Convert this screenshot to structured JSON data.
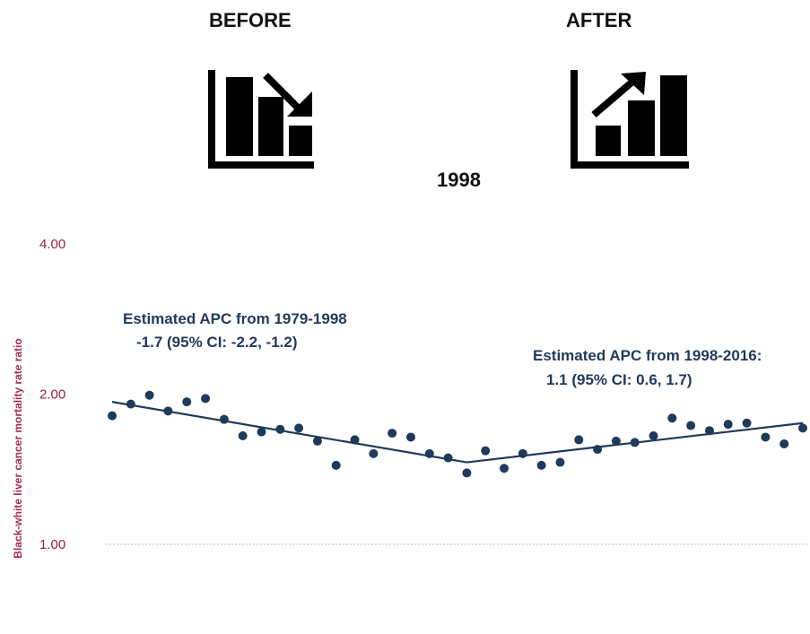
{
  "header": {
    "before_label": "BEFORE",
    "after_label": "AFTER",
    "joinpoint_label": "1998",
    "before_icon": "bar-chart-decreasing-icon",
    "after_icon": "bar-chart-increasing-icon"
  },
  "colors": {
    "points": "#1f3a5a",
    "trend_line": "#1f3a5a",
    "axis_text": "#9b1b4c",
    "reference_line": "#bbbbbb"
  },
  "chart_data": {
    "type": "scatter",
    "ylabel": "Black-white liver cancer mortality rate ratio",
    "xlabel": "",
    "y_scale": "log",
    "ylim": [
      0.8,
      4.0
    ],
    "y_ticks": [
      {
        "value": 4.0,
        "label": "4.00"
      },
      {
        "value": 2.0,
        "label": "2.00"
      },
      {
        "value": 1.0,
        "label": "1.00"
      }
    ],
    "reference_line": 1.0,
    "xlim": [
      1979,
      2016
    ],
    "x": [
      1979,
      1980,
      1981,
      1982,
      1983,
      1984,
      1985,
      1986,
      1987,
      1988,
      1989,
      1990,
      1991,
      1992,
      1993,
      1994,
      1995,
      1996,
      1997,
      1998,
      1999,
      2000,
      2001,
      2002,
      2003,
      2004,
      2005,
      2006,
      2007,
      2008,
      2009,
      2010,
      2011,
      2012,
      2013,
      2014,
      2015,
      2016
    ],
    "values": [
      1.81,
      1.91,
      1.99,
      1.85,
      1.93,
      1.96,
      1.78,
      1.65,
      1.68,
      1.7,
      1.71,
      1.61,
      1.44,
      1.62,
      1.52,
      1.67,
      1.64,
      1.52,
      1.49,
      1.39,
      1.54,
      1.42,
      1.52,
      1.44,
      1.46,
      1.62,
      1.55,
      1.61,
      1.6,
      1.65,
      1.79,
      1.73,
      1.69,
      1.74,
      1.75,
      1.64,
      1.59,
      1.71
    ],
    "segments": [
      {
        "from": [
          1979,
          1.93
        ],
        "to": [
          1998,
          1.46
        ]
      },
      {
        "from": [
          1998,
          1.46
        ],
        "to": [
          2016,
          1.75
        ]
      }
    ],
    "annotations": [
      {
        "lines": [
          "Estimated APC from 1979-1998",
          "-1.7 (95% CI: -2.2, -1.2)"
        ]
      },
      {
        "lines": [
          "Estimated APC from 1998-2016:",
          "1.1 (95% CI: 0.6, 1.7)"
        ]
      }
    ]
  }
}
